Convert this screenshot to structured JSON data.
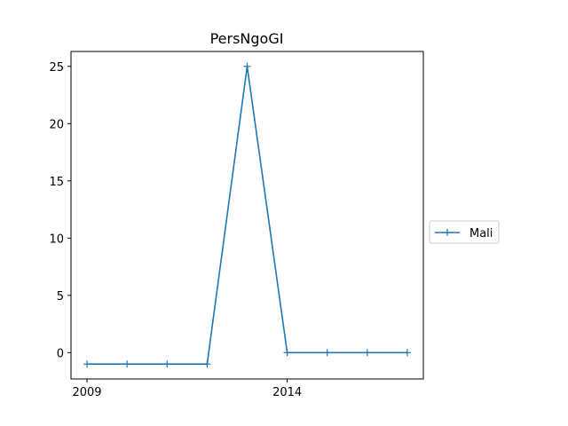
{
  "chart_data": {
    "type": "line",
    "title": "PersNgoGI",
    "xlabel": "",
    "ylabel": "",
    "x": [
      2009,
      2010,
      2011,
      2012,
      2013,
      2014,
      2015,
      2016,
      2017
    ],
    "x_ticks": [
      2009,
      2014
    ],
    "y_ticks": [
      0,
      5,
      10,
      15,
      20,
      25
    ],
    "xlim": [
      2008.6,
      2017.4
    ],
    "ylim": [
      -2.3,
      26.3
    ],
    "grid": false,
    "legend_position": "right",
    "series": [
      {
        "name": "Mali",
        "color": "#1f77b4",
        "marker": "plus",
        "values": [
          -1,
          -1,
          -1,
          -1,
          25,
          0,
          0,
          0,
          0
        ]
      }
    ]
  }
}
